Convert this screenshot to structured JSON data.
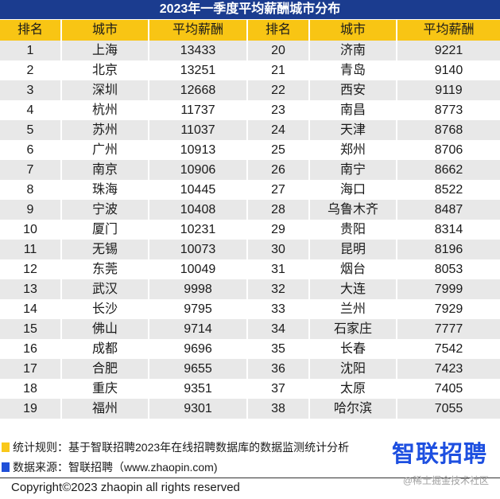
{
  "title": "2023年一季度平均薪酬城市分布",
  "table": {
    "headers": [
      "排名",
      "城市",
      "平均薪酬",
      "排名",
      "城市",
      "平均薪酬"
    ],
    "rows": [
      [
        1,
        "上海",
        13433,
        20,
        "济南",
        9221
      ],
      [
        2,
        "北京",
        13251,
        21,
        "青岛",
        9140
      ],
      [
        3,
        "深圳",
        12668,
        22,
        "西安",
        9119
      ],
      [
        4,
        "杭州",
        11737,
        23,
        "南昌",
        8773
      ],
      [
        5,
        "苏州",
        11037,
        24,
        "天津",
        8768
      ],
      [
        6,
        "广州",
        10913,
        25,
        "郑州",
        8706
      ],
      [
        7,
        "南京",
        10906,
        26,
        "南宁",
        8662
      ],
      [
        8,
        "珠海",
        10445,
        27,
        "海口",
        8522
      ],
      [
        9,
        "宁波",
        10408,
        28,
        "乌鲁木齐",
        8487
      ],
      [
        10,
        "厦门",
        10231,
        29,
        "贵阳",
        8314
      ],
      [
        11,
        "无锡",
        10073,
        30,
        "昆明",
        8196
      ],
      [
        12,
        "东莞",
        10049,
        31,
        "烟台",
        8053
      ],
      [
        13,
        "武汉",
        9998,
        32,
        "大连",
        7999
      ],
      [
        14,
        "长沙",
        9795,
        33,
        "兰州",
        7929
      ],
      [
        15,
        "佛山",
        9714,
        34,
        "石家庄",
        7777
      ],
      [
        16,
        "成都",
        9696,
        35,
        "长春",
        7542
      ],
      [
        17,
        "合肥",
        9655,
        36,
        "沈阳",
        7423
      ],
      [
        18,
        "重庆",
        9351,
        37,
        "太原",
        7405
      ],
      [
        19,
        "福州",
        9301,
        38,
        "哈尔滨",
        7055
      ]
    ]
  },
  "footer": {
    "rule": "统计规则：基于智联招聘2023年在线招聘数据库的数据监测统计分析",
    "source": "数据来源：智联招聘（www.zhaopin.com)",
    "logo": "智联招聘",
    "copyright": "Copyright©2023 zhaopin all rights reserved",
    "watermark": "@稀土掘金技术社区"
  },
  "colors": {
    "title_bg": "#1b3c8f",
    "header_bg": "#f8c514",
    "row_alt": "#e8e8e8",
    "legend_yellow": "#f9c81a",
    "legend_blue": "#1f4fd8",
    "logo_blue": "#1d4fe0"
  }
}
